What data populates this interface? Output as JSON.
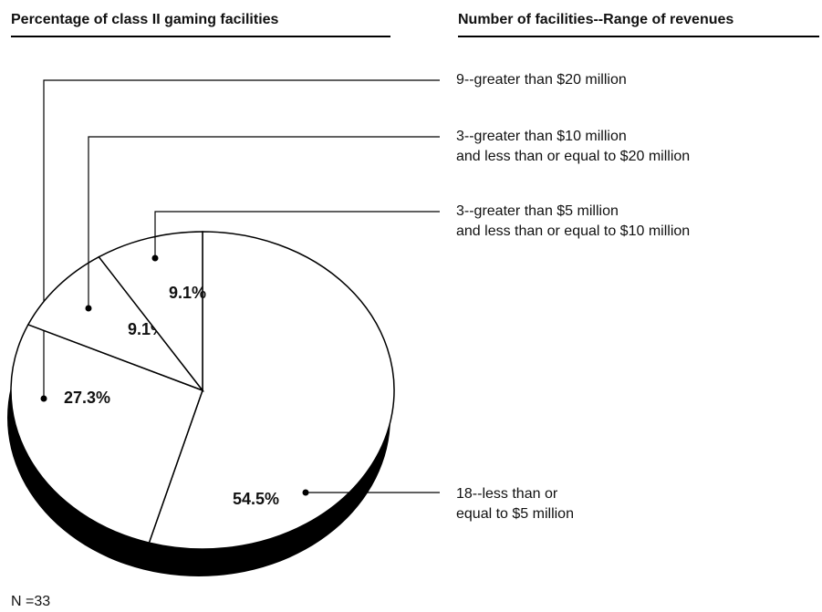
{
  "chart_data": {
    "type": "pie",
    "title": "Percentage of class II gaming facilities",
    "legend_title": "Number of facilities--Range of revenues",
    "note": "N =33",
    "values": [
      54.5,
      27.3,
      9.1,
      9.1
    ],
    "value_labels": [
      "54.5%",
      "27.3%",
      "9.1%",
      "9.1%"
    ],
    "labels": [
      [
        "18--less than or",
        "equal to $5 million"
      ],
      [
        "9--greater than $20 million"
      ],
      [
        "3--greater than $10 million",
        "and less than or equal to $20 million"
      ],
      [
        "3--greater than $5 million",
        "and less than or equal to $10 million"
      ]
    ],
    "colors": [
      "#ffffff",
      "#ffffff",
      "#ffffff",
      "#ffffff"
    ],
    "depth_color": "#000000"
  }
}
